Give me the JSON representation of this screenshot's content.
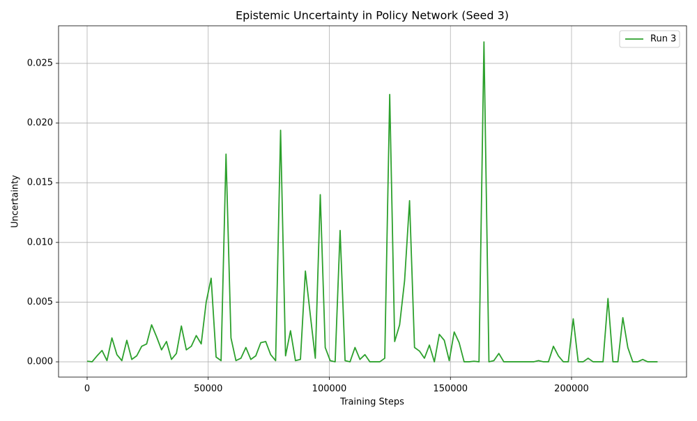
{
  "chart_data": {
    "type": "line",
    "title": "Epistemic Uncertainty in Policy Network (Seed 3)",
    "x_label": "Training Steps",
    "y_label": "Uncertainty",
    "x": [
      0,
      2048,
      4096,
      6144,
      8192,
      10240,
      12288,
      14336,
      16384,
      18432,
      20480,
      22528,
      24576,
      26624,
      28672,
      30720,
      32768,
      34816,
      36864,
      38912,
      40960,
      43008,
      45056,
      47104,
      49152,
      51200,
      53248,
      55296,
      57344,
      59392,
      61440,
      63488,
      65536,
      67584,
      69632,
      71680,
      73728,
      75776,
      77824,
      79872,
      81920,
      83968,
      86016,
      88064,
      90112,
      92160,
      94208,
      96256,
      98304,
      100352,
      102400,
      104448,
      106496,
      108544,
      110592,
      112640,
      114688,
      116736,
      118784,
      120832,
      122880,
      124928,
      126976,
      129024,
      131072,
      133120,
      135168,
      137216,
      139264,
      141312,
      143360,
      145408,
      147456,
      149504,
      151552,
      153600,
      155648,
      157696,
      159744,
      161792,
      163840,
      165888,
      167936,
      169984,
      172032,
      174080,
      176128,
      178176,
      180224,
      182272,
      184320,
      186368,
      188416,
      190464,
      192512,
      194560,
      196608,
      198656,
      200704,
      202752,
      204800,
      206848,
      208896,
      210944,
      212992,
      215040,
      217088,
      219136,
      221184,
      223232,
      225280,
      227328,
      229376,
      231424,
      233472,
      235520
    ],
    "series": [
      {
        "name": "Run 3",
        "color": "#2ca02c",
        "values": [
          5e-05,
          0.0,
          0.0005,
          0.00095,
          0.0001,
          0.002,
          0.0006,
          0.0001,
          0.0018,
          0.0002,
          0.0005,
          0.0013,
          0.0015,
          0.0031,
          0.0021,
          0.001,
          0.0017,
          0.0002,
          0.0007,
          0.003,
          0.001,
          0.0013,
          0.0022,
          0.0015,
          0.005,
          0.007,
          0.0004,
          0.0001,
          0.0174,
          0.002,
          0.0001,
          0.0003,
          0.0012,
          0.0002,
          0.0005,
          0.0016,
          0.0017,
          0.0006,
          0.0001,
          0.0194,
          0.0005,
          0.0026,
          0.0001,
          0.0002,
          0.0076,
          0.0039,
          0.0003,
          0.014,
          0.0012,
          0.0001,
          0.0,
          0.011,
          0.0001,
          0.0,
          0.0012,
          0.0002,
          0.0006,
          0.0,
          0.0,
          0.0,
          0.0003,
          0.0224,
          0.0017,
          0.0031,
          0.0068,
          0.0135,
          0.0012,
          0.0009,
          0.0003,
          0.0014,
          0.0,
          0.0023,
          0.0018,
          0.0001,
          0.0025,
          0.0016,
          0.0,
          0.0,
          5e-05,
          0.0,
          0.0268,
          0.0,
          0.0001,
          0.0007,
          0.0,
          0.0,
          0.0,
          0.0,
          0.0,
          0.0,
          0.0,
          0.0001,
          0.0,
          0.0,
          0.0013,
          0.0005,
          0.0,
          0.0,
          0.0036,
          0.0,
          0.0,
          0.0003,
          0.0,
          0.0,
          0.0,
          0.0053,
          0.0,
          0.0,
          0.0037,
          0.0012,
          0.0,
          0.0,
          0.0002,
          0.0,
          0.0,
          0.0
        ]
      }
    ],
    "xlim": [
      -11800,
      247480
    ],
    "ylim": [
      -0.00128,
      0.02815
    ],
    "xticks": [
      0,
      50000,
      100000,
      150000,
      200000
    ],
    "yticks": [
      {
        "value": 0,
        "label": "0.000"
      },
      {
        "value": 0.005,
        "label": "0.005"
      },
      {
        "value": 0.01,
        "label": "0.010"
      },
      {
        "value": 0.015,
        "label": "0.015"
      },
      {
        "value": 0.02,
        "label": "0.020"
      },
      {
        "value": 0.025,
        "label": "0.025"
      }
    ],
    "grid": true,
    "legend": "upper-right"
  }
}
